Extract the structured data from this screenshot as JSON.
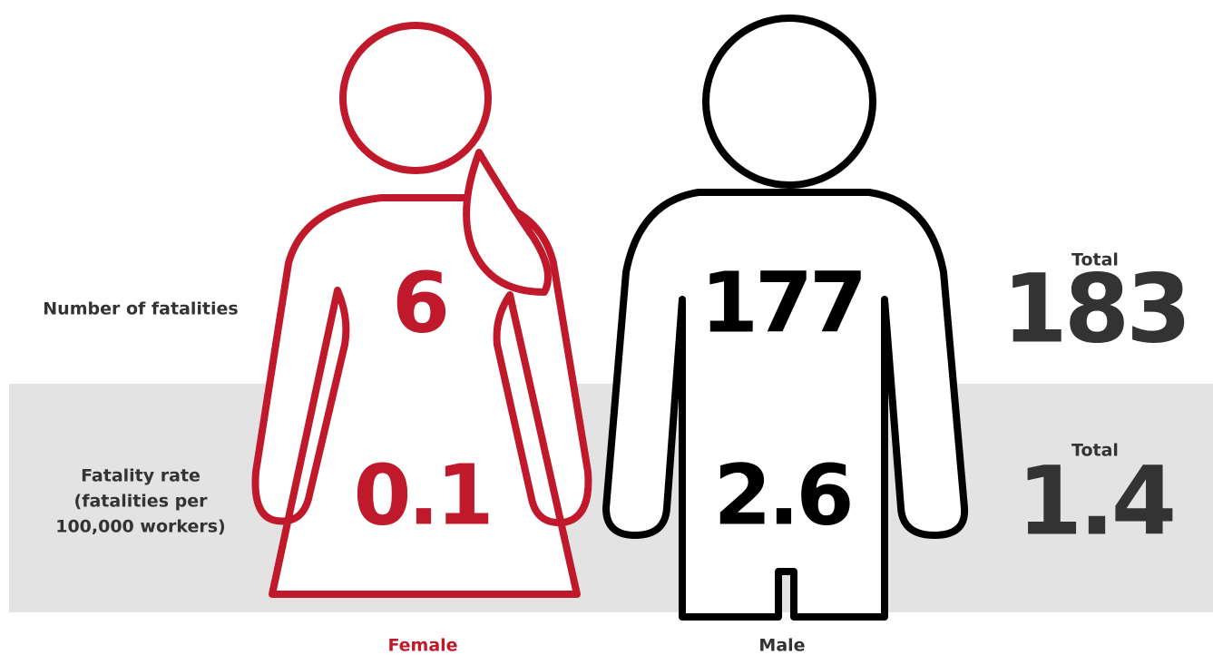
{
  "columns": [
    "Female",
    "Male"
  ],
  "rows": [
    {
      "label": [
        "Number of fatalities"
      ],
      "female": 6,
      "male": 177,
      "total_label": "Total",
      "total": 183
    },
    {
      "label": [
        "Fatality rate",
        "(fatalities per",
        "100,000 workers)"
      ],
      "female": 0.1,
      "male": 2.6,
      "total_label": "Total",
      "total": 1.4
    }
  ]
}
